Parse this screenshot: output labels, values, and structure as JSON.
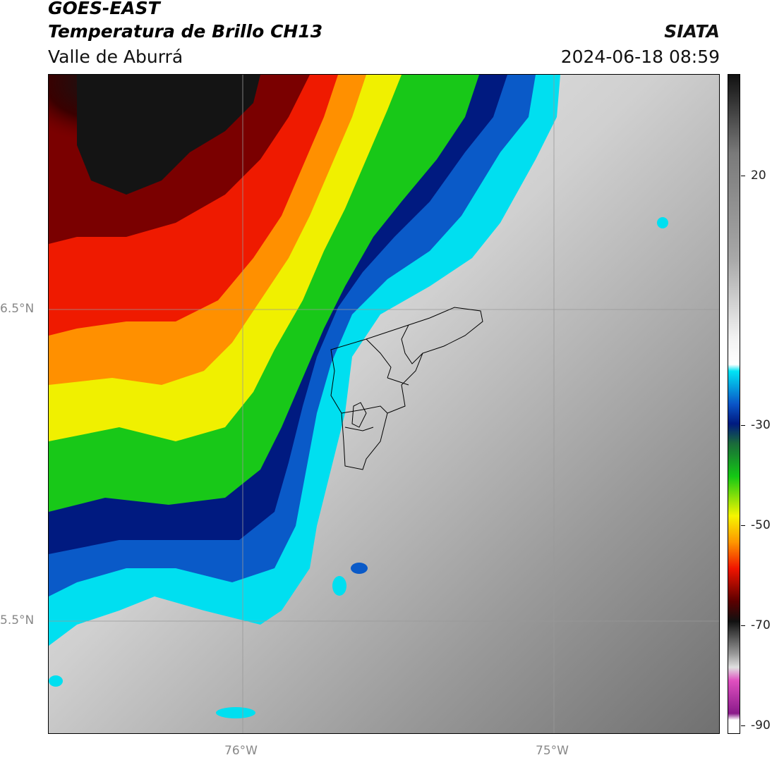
{
  "header": {
    "satellite": "GOES-EAST",
    "product": "Temperatura de Brillo CH13",
    "region": "Valle de Aburrá",
    "brand": "SIATA",
    "datetime": "2024-06-18 08:59"
  },
  "axes": {
    "lat_labels": [
      "6.5°N",
      "5.5°N"
    ],
    "lon_labels": [
      "76°W",
      "75°W"
    ]
  },
  "colorbar": {
    "ticks": [
      "20",
      "-30",
      "-50",
      "-70",
      "-90"
    ],
    "palette": {
      "warm_gray_light": "#f2f2f2",
      "warm_gray_dark": "#6b6b6b",
      "cyan": "#00e5f5",
      "blue": "#0a55c8",
      "navy": "#001a80",
      "green": "#14c814",
      "yellow": "#f5f500",
      "orange": "#ff9600",
      "red": "#f01400",
      "dark_red": "#5a0000",
      "black": "#111111",
      "magenta": "#e050c0",
      "purple": "#8a1a8a"
    }
  },
  "map": {
    "grid": true,
    "overlay": "municipal boundaries (black outline)"
  }
}
